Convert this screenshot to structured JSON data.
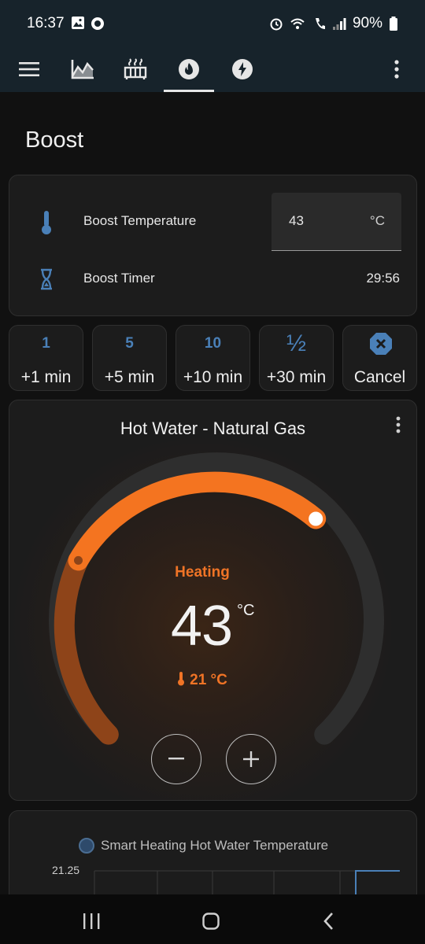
{
  "status_bar": {
    "time": "16:37",
    "battery": "90%"
  },
  "app_bar": {
    "icons": [
      "menu-icon",
      "chart-icon",
      "radiator-icon",
      "flame-icon",
      "lightning-icon",
      "more-vertical-icon"
    ],
    "active_tab": "flame-icon"
  },
  "page": {
    "title": "Boost"
  },
  "boost_settings": {
    "temperature_label": "Boost Temperature",
    "temperature_value": "43",
    "temperature_unit": "°C",
    "timer_label": "Boost Timer",
    "timer_value": "29:56"
  },
  "boost_buttons": [
    {
      "icon": "1",
      "label": "+1 min"
    },
    {
      "icon": "5",
      "label": "+5 min"
    },
    {
      "icon": "10",
      "label": "+10 min"
    },
    {
      "icon": "½",
      "label": "+30 min"
    },
    {
      "icon": "cancel-icon",
      "label": "Cancel"
    }
  ],
  "thermostat": {
    "title": "Hot Water - Natural Gas",
    "hvac_action": "Heating",
    "target_temperature": "43",
    "target_unit": "°C",
    "current_temperature": "21 °C",
    "colors": {
      "accent": "#f47420",
      "track": "#2e2e2e"
    }
  },
  "history_chart": {
    "legend": "Smart Heating Hot Water Temperature",
    "y_tick": "21.25",
    "series_color": "#4a80b8"
  }
}
